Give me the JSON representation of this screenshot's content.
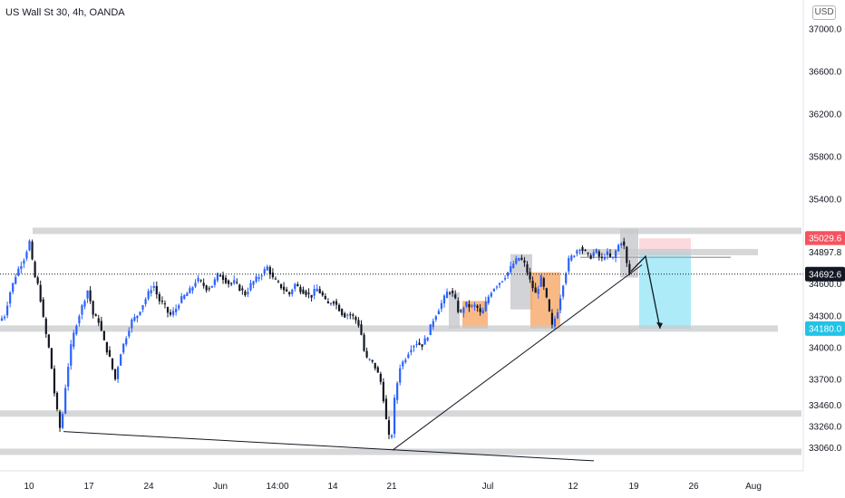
{
  "chart_data": {
    "type": "candlestick",
    "title": "US Wall St 30, 4h, OANDA",
    "currency": "USD",
    "colors": {
      "up": "#2962ff",
      "down": "#131722",
      "zone": "#c8c9cc",
      "orange": "#f5a25d",
      "target": "#9fe7f8",
      "stop": "#fbd0d4"
    },
    "ylim": [
      32960,
      37120
    ],
    "y_ticks": [
      "37000.0",
      "36600.0",
      "36200.0",
      "35800.0",
      "35400.0",
      "35000.0",
      "34600.0",
      "34300.0",
      "34000.0",
      "33700.0",
      "33460.0",
      "33260.0",
      "33060.0"
    ],
    "x_ticks": [
      "10",
      "17",
      "24",
      "Jun",
      "14:00",
      "14",
      "21",
      "Jul",
      "12",
      "19",
      "26",
      "Aug"
    ],
    "price_tags": [
      {
        "label": "35029.6",
        "value": 35029.6,
        "style": "stop"
      },
      {
        "label": "34897.8",
        "value": 34897.8,
        "style": "plain"
      },
      {
        "label": "34692.6",
        "value": 34692.6,
        "style": "current"
      },
      {
        "label": "34180.0",
        "value": 34180.0,
        "style": "target"
      }
    ],
    "levels": [
      35100,
      34900,
      34180,
      33380,
      33020
    ],
    "price_path": [
      [
        0,
        34240
      ],
      [
        8,
        34300
      ],
      [
        14,
        34520
      ],
      [
        22,
        34720
      ],
      [
        30,
        34850
      ],
      [
        36,
        35010
      ],
      [
        40,
        34700
      ],
      [
        46,
        34560
      ],
      [
        52,
        34200
      ],
      [
        58,
        33950
      ],
      [
        64,
        33500
      ],
      [
        70,
        33200
      ],
      [
        76,
        33700
      ],
      [
        82,
        34050
      ],
      [
        88,
        34250
      ],
      [
        94,
        34400
      ],
      [
        100,
        34550
      ],
      [
        106,
        34300
      ],
      [
        112,
        34250
      ],
      [
        118,
        34050
      ],
      [
        124,
        33900
      ],
      [
        130,
        33700
      ],
      [
        136,
        33950
      ],
      [
        142,
        34100
      ],
      [
        148,
        34250
      ],
      [
        154,
        34300
      ],
      [
        160,
        34400
      ],
      [
        166,
        34500
      ],
      [
        172,
        34600
      ],
      [
        178,
        34450
      ],
      [
        184,
        34400
      ],
      [
        190,
        34300
      ],
      [
        196,
        34350
      ],
      [
        202,
        34450
      ],
      [
        208,
        34500
      ],
      [
        214,
        34550
      ],
      [
        220,
        34650
      ],
      [
        226,
        34600
      ],
      [
        232,
        34550
      ],
      [
        238,
        34600
      ],
      [
        244,
        34700
      ],
      [
        250,
        34650
      ],
      [
        256,
        34600
      ],
      [
        262,
        34620
      ],
      [
        268,
        34550
      ],
      [
        274,
        34500
      ],
      [
        280,
        34600
      ],
      [
        286,
        34650
      ],
      [
        292,
        34700
      ],
      [
        298,
        34760
      ],
      [
        304,
        34650
      ],
      [
        310,
        34600
      ],
      [
        316,
        34550
      ],
      [
        322,
        34500
      ],
      [
        328,
        34600
      ],
      [
        334,
        34550
      ],
      [
        340,
        34520
      ],
      [
        346,
        34480
      ],
      [
        352,
        34560
      ],
      [
        358,
        34500
      ],
      [
        364,
        34400
      ],
      [
        370,
        34450
      ],
      [
        376,
        34380
      ],
      [
        382,
        34300
      ],
      [
        388,
        34320
      ],
      [
        394,
        34280
      ],
      [
        400,
        34200
      ],
      [
        406,
        33900
      ],
      [
        412,
        33880
      ],
      [
        418,
        33800
      ],
      [
        424,
        33650
      ],
      [
        430,
        33250
      ],
      [
        434,
        33070
      ],
      [
        438,
        33500
      ],
      [
        444,
        33820
      ],
      [
        450,
        33900
      ],
      [
        456,
        34000
      ],
      [
        462,
        34050
      ],
      [
        468,
        34020
      ],
      [
        474,
        34100
      ],
      [
        480,
        34250
      ],
      [
        486,
        34350
      ],
      [
        492,
        34450
      ],
      [
        498,
        34550
      ],
      [
        504,
        34480
      ],
      [
        510,
        34300
      ],
      [
        516,
        34420
      ],
      [
        522,
        34380
      ],
      [
        528,
        34400
      ],
      [
        534,
        34300
      ],
      [
        540,
        34450
      ],
      [
        546,
        34550
      ],
      [
        552,
        34600
      ],
      [
        558,
        34650
      ],
      [
        564,
        34720
      ],
      [
        570,
        34800
      ],
      [
        576,
        34850
      ],
      [
        582,
        34780
      ],
      [
        588,
        34620
      ],
      [
        594,
        34500
      ],
      [
        600,
        34660
      ],
      [
        606,
        34450
      ],
      [
        612,
        34200
      ],
      [
        618,
        34350
      ],
      [
        624,
        34600
      ],
      [
        630,
        34820
      ],
      [
        636,
        34880
      ],
      [
        642,
        34950
      ],
      [
        648,
        34900
      ],
      [
        654,
        34850
      ],
      [
        660,
        34920
      ],
      [
        666,
        34820
      ],
      [
        672,
        34900
      ],
      [
        678,
        34820
      ],
      [
        684,
        34950
      ],
      [
        690,
        35020
      ],
      [
        696,
        34700
      ]
    ],
    "annotations": {
      "support_line": [
        [
          70,
          33210
        ],
        [
          655,
          32935
        ]
      ],
      "trend_line": [
        [
          433,
          33035
        ],
        [
          708,
          34780
        ]
      ],
      "arrow_path": [
        [
          696,
          34720
        ],
        [
          712,
          34860
        ],
        [
          728,
          34180
        ]
      ],
      "gray_boxes": [
        [
          495,
          507,
          34520,
          34180
        ],
        [
          563,
          587,
          34880,
          34360
        ],
        [
          684,
          704,
          35120,
          34660
        ]
      ],
      "orange_boxes": [
        [
          510,
          538,
          34440,
          34180
        ],
        [
          585,
          618,
          34710,
          34180
        ]
      ],
      "position": {
        "x0": 705,
        "x1": 762,
        "entry": 34897.8,
        "stop": 35029.6,
        "target": 34180.0
      }
    }
  }
}
